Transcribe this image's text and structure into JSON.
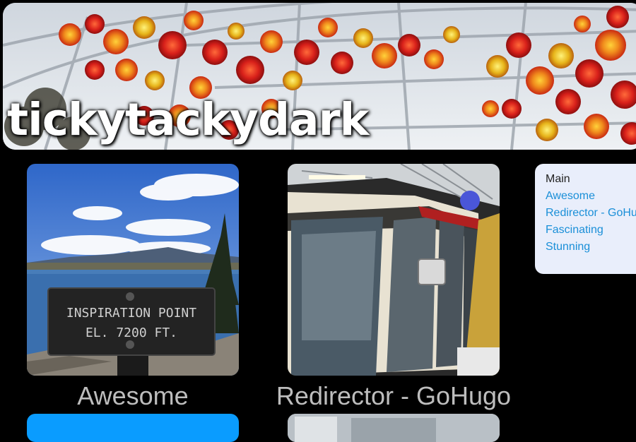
{
  "site": {
    "title": "tickytackydark"
  },
  "cards": [
    {
      "title": "Awesome",
      "sign_line1": "INSPIRATION POINT",
      "sign_line2": "EL. 7200 FT."
    },
    {
      "title": "Redirector - GoHugo"
    }
  ],
  "sidebar": {
    "items": [
      {
        "label": "Main"
      },
      {
        "label": "Awesome"
      },
      {
        "label": "Redirector - GoHugo"
      },
      {
        "label": "Fascinating"
      },
      {
        "label": "Stunning"
      }
    ]
  },
  "colors": {
    "background": "#000000",
    "link": "#1a8fd8",
    "card_title": "#bdbdbd",
    "sidebar_bg": "#e9eefb",
    "partial_card_blue": "#0a9cff"
  },
  "icons": {
    "banner": "glass-flowers-banner-image",
    "card1": "inspiration-point-sign-photo",
    "card2": "monorail-train-photo"
  }
}
